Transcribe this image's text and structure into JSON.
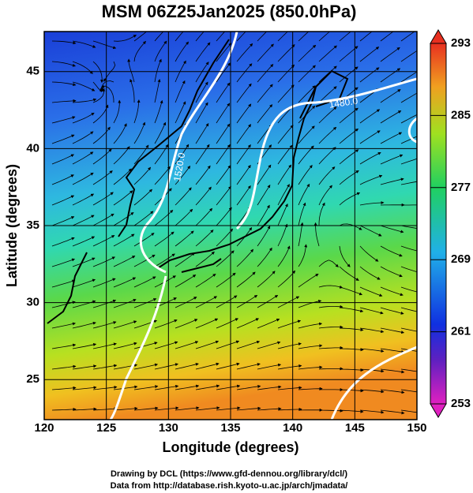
{
  "title": "MSM 06Z25Jan2025 (850.0hPa)",
  "x_label": "Longitude (degrees)",
  "y_label": "Latitude (degrees)",
  "xlim": [
    120,
    150
  ],
  "ylim": [
    22.4,
    47.6
  ],
  "xticks": [
    120,
    125,
    130,
    135,
    140,
    145,
    150
  ],
  "yticks": [
    25,
    30,
    35,
    40,
    45
  ],
  "colorbar": {
    "lim": [
      253,
      293
    ],
    "ticks": [
      253,
      261,
      269,
      277,
      285,
      293
    ]
  },
  "contour_labels": [
    "1520.0",
    "1480.0"
  ],
  "credits": [
    "Drawing by DCL (https://www.gfd-dennou.org/library/dcl/)",
    "Data from http://database.rish.kyoto-u.ac.jp/arch/jmadata/"
  ]
}
